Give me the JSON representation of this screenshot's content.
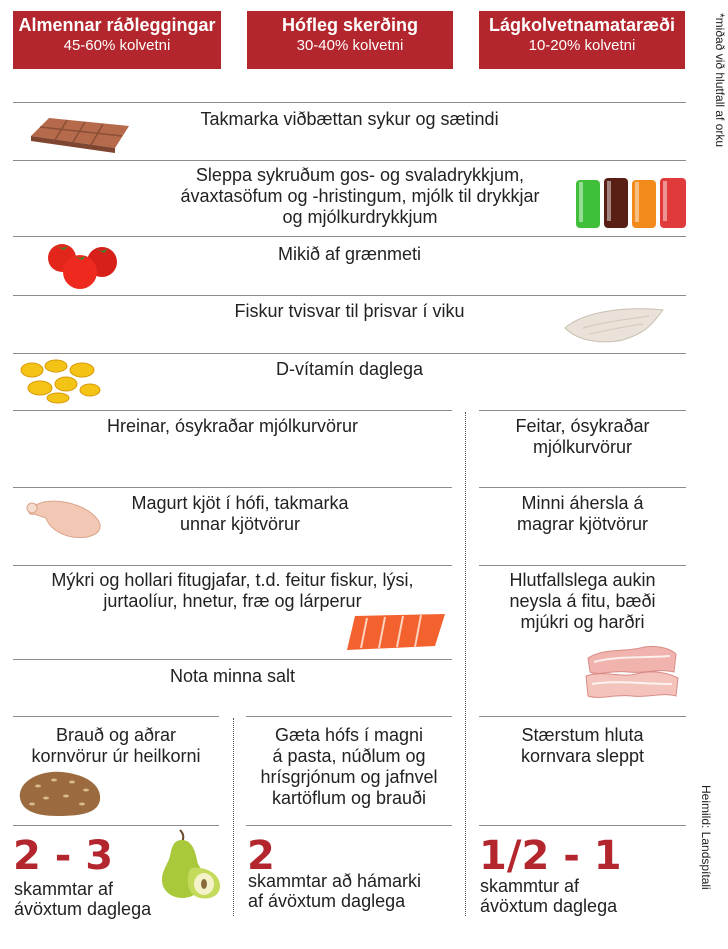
{
  "columns": [
    {
      "title": "Almennar ráðleggingar",
      "subtitle": "45-60% kolvetni"
    },
    {
      "title": "Hófleg skerðing",
      "subtitle": "30-40% kolvetni"
    },
    {
      "title": "Lágkolvetnamataræði",
      "subtitle": "10-20% kolvetni"
    }
  ],
  "side_note": "*miðað við hlutfall af orku",
  "source": "Heimild: Landspítali",
  "rows": {
    "sugar": "Takmarka viðbættan sykur og sætindi",
    "drinks": [
      "Sleppa sykruðum gos- og svaladrykkjum,",
      "ávaxtasöfum og -hristingum, mjólk til drykkjar",
      "og mjólkurdrykkjum"
    ],
    "vegetables": "Mikið af grænmeti",
    "fish": "Fiskur tvisvar til þrisvar í viku",
    "vitamin": "D-vítamín daglega"
  },
  "dairy": {
    "left": "Hreinar, ósykraðar mjólkurvörur",
    "right": [
      "Feitar, ósykraðar",
      "mjólkurvörur"
    ]
  },
  "meat": {
    "left": [
      "Magurt kjöt í hófi, takmarka",
      "unnar kjötvörur"
    ],
    "right": [
      "Minni áhersla á",
      "magrar kjötvörur"
    ]
  },
  "fats": {
    "left": [
      "Mýkri og hollari fitugjafar, t.d. feitur fiskur, lýsi,",
      "jurtaolíur, hnetur, fræ og lárperur"
    ],
    "right": [
      "Hlutfallslega aukin",
      "neysla á fitu, bæði",
      "mjúkri og harðri"
    ]
  },
  "salt": "Nota minna salt",
  "grains": {
    "col1": [
      "Brauð og aðrar",
      "kornvörur úr heilkorni"
    ],
    "col2": [
      "Gæta hófs í magni",
      "á pasta, núðlum og",
      "hrísgrjónum og jafnvel",
      "kartöflum og brauði"
    ],
    "col3": [
      "Stærstum hluta",
      "kornvara sleppt"
    ]
  },
  "fruit": {
    "col1": {
      "amount": "2 - 3",
      "text": [
        "skammtar af",
        "ávöxtum daglega"
      ]
    },
    "col2": {
      "amount": "2",
      "text": [
        "skammtar að hámarki",
        "af ávöxtum daglega"
      ]
    },
    "col3": {
      "amount": "1/2 - 1",
      "text": [
        "skammtur af",
        "ávöxtum daglega"
      ]
    }
  },
  "colors": {
    "header": "#b3262d",
    "accent_number": "#b3262d"
  }
}
